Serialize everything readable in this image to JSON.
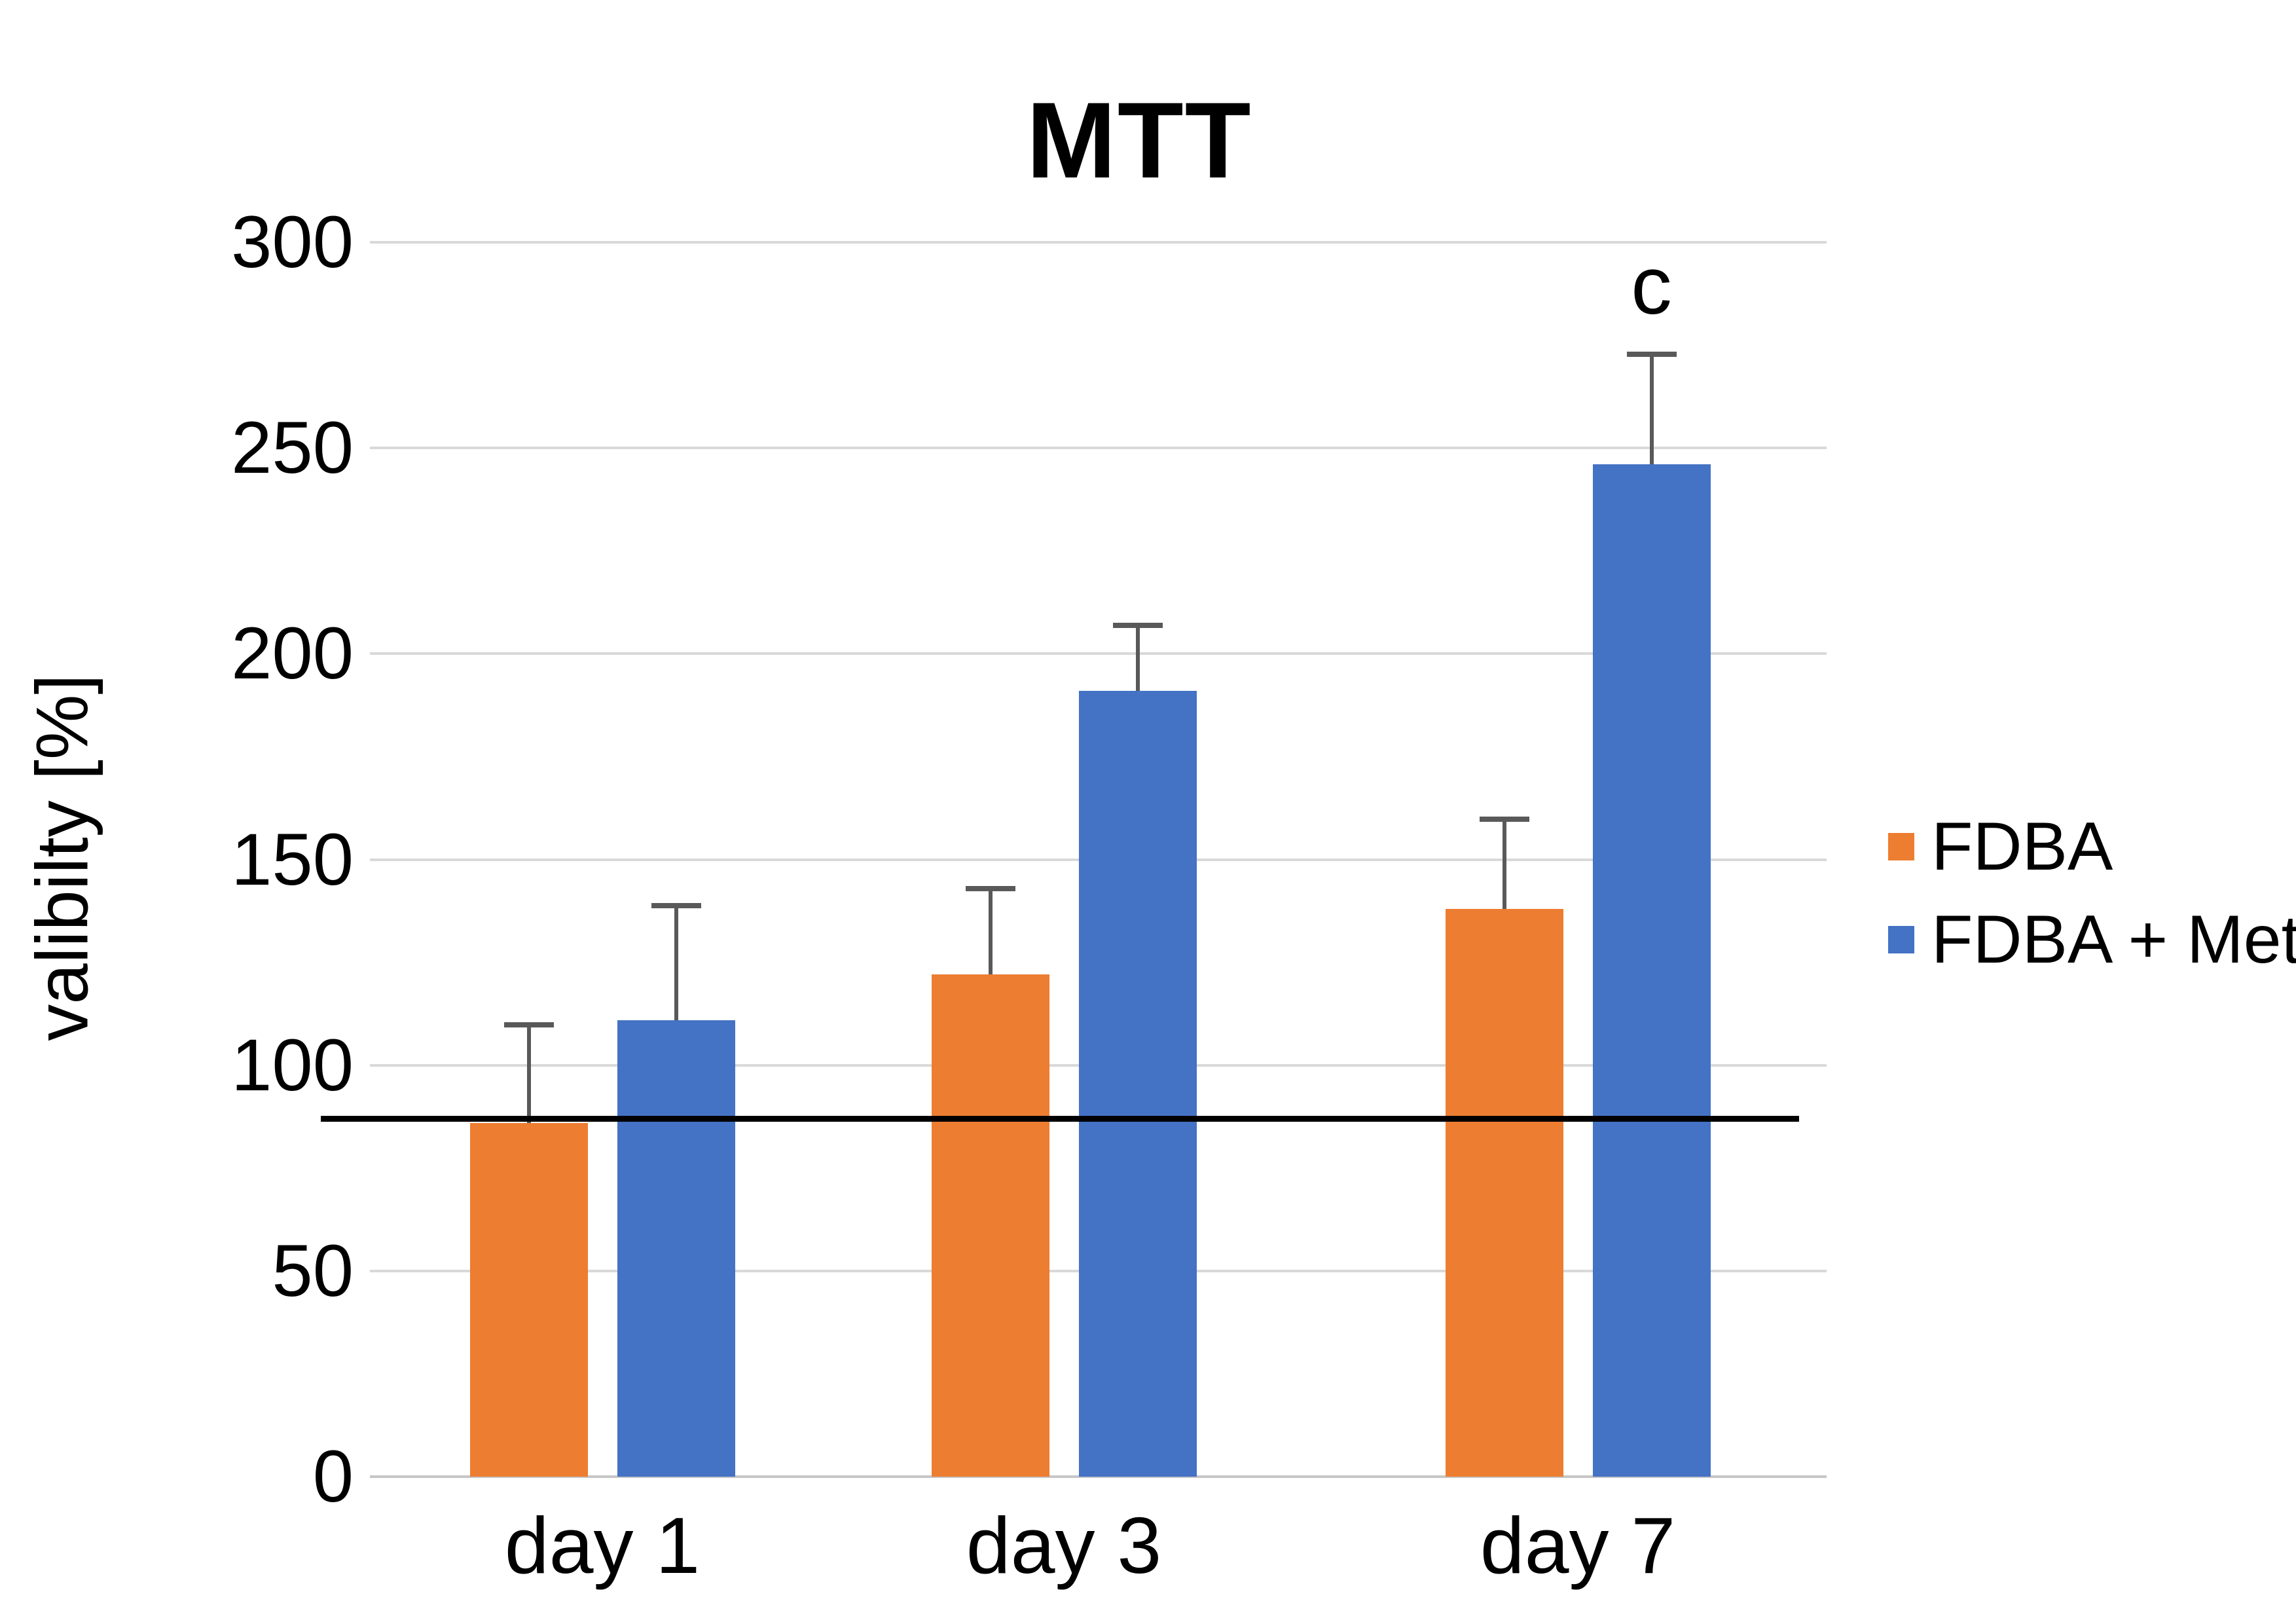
{
  "chart_data": {
    "type": "bar",
    "title": "MTT",
    "xlabel": "",
    "ylabel": "valibilty [%]",
    "categories": [
      "day 1",
      "day 3",
      "day 7"
    ],
    "series": [
      {
        "name": "FDBA",
        "color": "#ED7D31",
        "values": [
          86,
          122,
          138
        ],
        "error_plus": [
          24,
          21,
          22
        ]
      },
      {
        "name": "FDBA + Met",
        "color": "#4472C4",
        "values": [
          111,
          191,
          246
        ],
        "error_plus": [
          28,
          16,
          27
        ]
      }
    ],
    "ylim": [
      0,
      300
    ],
    "yticks": [
      0,
      50,
      100,
      150,
      200,
      250,
      300
    ],
    "grid": true,
    "gridline_color": "#d9d9d9",
    "error_bar_color": "#595959",
    "legend_position": "right",
    "reference_line": {
      "value": 87,
      "color": "#000000"
    },
    "annotations": [
      {
        "text": "c",
        "category_index": 2,
        "series_index": 1
      }
    ]
  }
}
